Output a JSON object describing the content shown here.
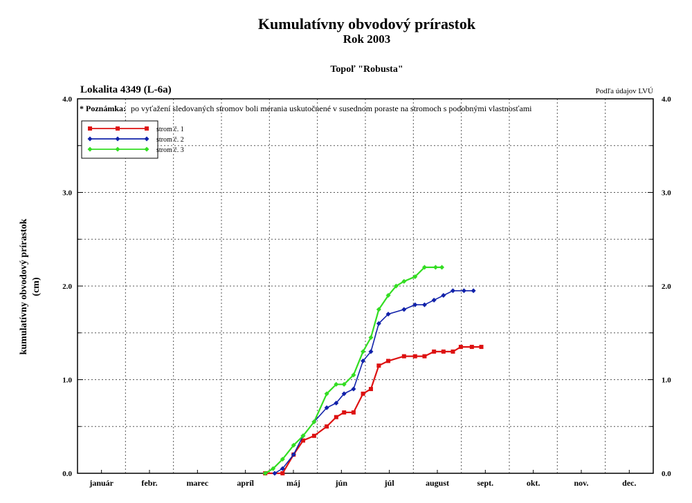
{
  "header": {
    "title": "Kumulatívny obvodový prírastok",
    "subtitle": "Rok 2003",
    "species": "Topoľ \"Robusta\"",
    "location": "Lokalita 4349 (L-6a)",
    "source": "Podľa údajov LVÚ"
  },
  "note": {
    "prefix": "* Poznámka:",
    "text": "po vyťažení sledovaných stromov boli merania uskutočnené v susednom poraste na stromoch s podobnými vlastnosťami"
  },
  "chart_data": {
    "type": "line",
    "title": "Kumulatívny obvodový prírastok",
    "ylabel": "kumulatívny obvodový prírastok",
    "ylabel_unit": "(cm)",
    "xlabel": "",
    "ylim": [
      0,
      4
    ],
    "xlim": [
      0,
      365
    ],
    "months": [
      "január",
      "febr.",
      "marec",
      "apríl",
      "máj",
      "jún",
      "júl",
      "august",
      "sept.",
      "okt.",
      "nov.",
      "dec."
    ],
    "y_ticks": [
      "0.0",
      "1.0",
      "2.0",
      "3.0",
      "4.0"
    ],
    "grid": true,
    "legend_position": "top-left",
    "series": [
      {
        "name": "strom č. 1",
        "color": "#dd1111",
        "marker": "square",
        "x": [
          119,
          130,
          137,
          143,
          150,
          158,
          164,
          169,
          175,
          181,
          186,
          191,
          197,
          207,
          214,
          220,
          226,
          232,
          238,
          243,
          250,
          256
        ],
        "y": [
          0.0,
          0.0,
          0.2,
          0.35,
          0.4,
          0.5,
          0.6,
          0.65,
          0.65,
          0.85,
          0.9,
          1.15,
          1.2,
          1.25,
          1.25,
          1.25,
          1.3,
          1.3,
          1.3,
          1.35,
          1.35,
          1.35
        ]
      },
      {
        "name": "strom č. 2",
        "color": "#1122aa",
        "marker": "diamond",
        "x": [
          125,
          130,
          137,
          143,
          150,
          158,
          164,
          169,
          175,
          181,
          186,
          191,
          197,
          207,
          214,
          220,
          226,
          232,
          238,
          245,
          251
        ],
        "y": [
          0.0,
          0.05,
          0.2,
          0.4,
          0.55,
          0.7,
          0.75,
          0.85,
          0.9,
          1.2,
          1.3,
          1.6,
          1.7,
          1.75,
          1.8,
          1.8,
          1.85,
          1.9,
          1.95,
          1.95,
          1.95
        ]
      },
      {
        "name": "strom č. 3",
        "color": "#33dd22",
        "marker": "diamond",
        "x": [
          119,
          124,
          130,
          137,
          143,
          150,
          158,
          164,
          169,
          175,
          181,
          186,
          191,
          197,
          202,
          207,
          214,
          220,
          227,
          231
        ],
        "y": [
          0.0,
          0.05,
          0.15,
          0.3,
          0.4,
          0.55,
          0.85,
          0.95,
          0.95,
          1.05,
          1.3,
          1.45,
          1.75,
          1.9,
          2.0,
          2.05,
          2.1,
          2.2,
          2.2,
          2.2
        ]
      }
    ]
  }
}
